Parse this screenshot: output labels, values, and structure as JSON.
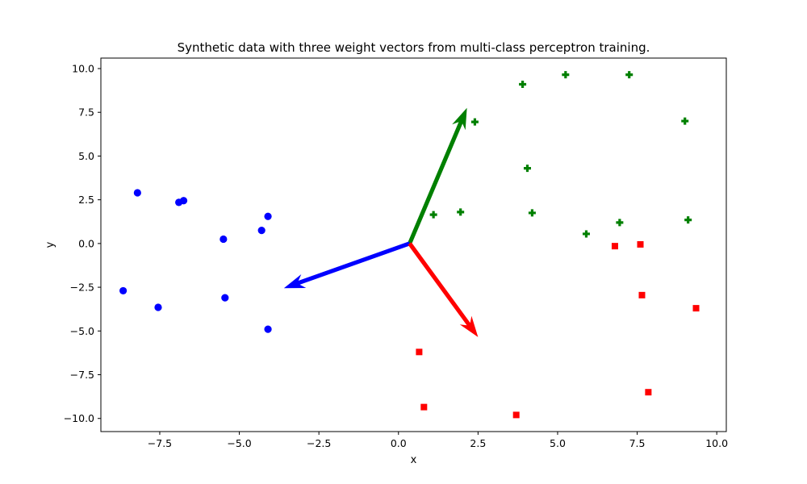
{
  "chart_data": {
    "type": "scatter",
    "title": "Synthetic data with three weight vectors from multi-class perceptron training.",
    "xlabel": "x",
    "ylabel": "y",
    "xlim": [
      -9.35,
      10.3
    ],
    "ylim": [
      -10.75,
      10.6
    ],
    "grid": false,
    "xticks": [
      -7.5,
      -5.0,
      -2.5,
      0.0,
      2.5,
      5.0,
      7.5,
      10.0
    ],
    "xtick_labels": [
      "−7.5",
      "−5.0",
      "−2.5",
      "0.0",
      "2.5",
      "5.0",
      "7.5",
      "10.0"
    ],
    "yticks": [
      -10.0,
      -7.5,
      -5.0,
      -2.5,
      0.0,
      2.5,
      5.0,
      7.5,
      10.0
    ],
    "ytick_labels": [
      "−10.0",
      "−7.5",
      "−5.0",
      "−2.5",
      "0.0",
      "2.5",
      "5.0",
      "7.5",
      "10.0"
    ],
    "series": [
      {
        "marker": "circle",
        "color": "#0000ff",
        "points": [
          [
            -8.2,
            2.9
          ],
          [
            -6.9,
            2.35
          ],
          [
            -6.75,
            2.45
          ],
          [
            -4.1,
            1.55
          ],
          [
            -5.5,
            0.25
          ],
          [
            -4.3,
            0.75
          ],
          [
            -8.65,
            -2.7
          ],
          [
            -7.55,
            -3.65
          ],
          [
            -5.45,
            -3.1
          ],
          [
            -4.1,
            -4.9
          ]
        ]
      },
      {
        "marker": "plus",
        "color": "#008000",
        "points": [
          [
            3.9,
            9.1
          ],
          [
            5.25,
            9.65
          ],
          [
            7.25,
            9.65
          ],
          [
            2.4,
            6.95
          ],
          [
            9.0,
            7.0
          ],
          [
            4.05,
            4.3
          ],
          [
            1.1,
            1.65
          ],
          [
            1.95,
            1.8
          ],
          [
            4.2,
            1.75
          ],
          [
            5.9,
            0.55
          ],
          [
            6.95,
            1.2
          ],
          [
            9.1,
            1.35
          ]
        ]
      },
      {
        "marker": "square",
        "color": "#ff0000",
        "points": [
          [
            6.8,
            -0.15
          ],
          [
            7.6,
            -0.05
          ],
          [
            7.65,
            -2.95
          ],
          [
            9.35,
            -3.7
          ],
          [
            0.65,
            -6.2
          ],
          [
            0.8,
            -9.35
          ],
          [
            3.7,
            -9.8
          ],
          [
            7.85,
            -8.5
          ]
        ]
      }
    ],
    "vectors": [
      {
        "color": "#008000",
        "from": [
          0.35,
          0.0
        ],
        "to": [
          2.15,
          7.75
        ]
      },
      {
        "color": "#0000ff",
        "from": [
          0.35,
          0.0
        ],
        "to": [
          -3.6,
          -2.55
        ]
      },
      {
        "color": "#ff0000",
        "from": [
          0.35,
          0.0
        ],
        "to": [
          2.5,
          -5.35
        ]
      }
    ]
  }
}
